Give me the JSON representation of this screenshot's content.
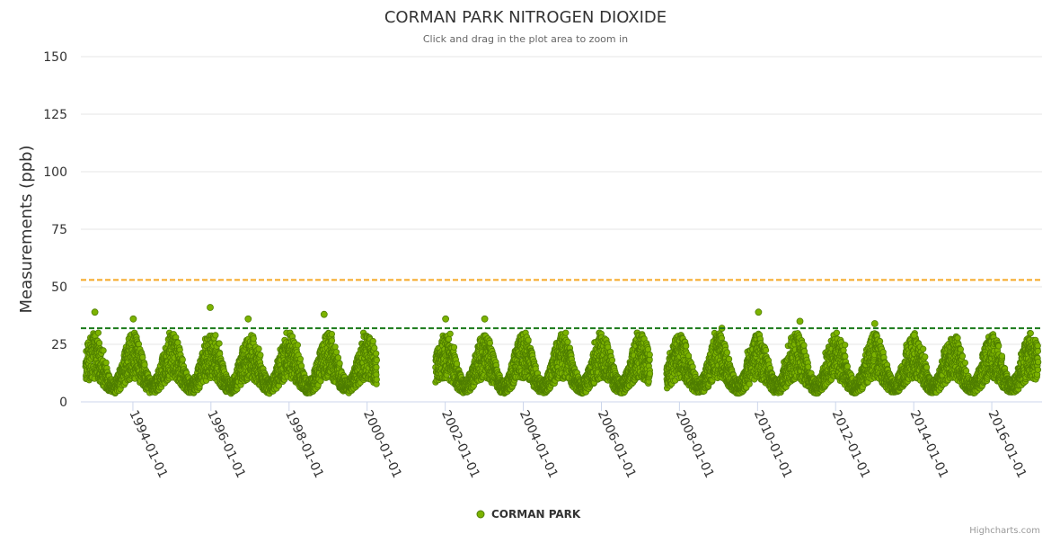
{
  "chart_data": {
    "type": "scatter",
    "title": "CORMAN PARK NITROGEN DIOXIDE",
    "subtitle": "Click and drag in the plot area to zoom in",
    "ylabel": "Measurements (ppb)",
    "xlabel": "",
    "ylim": [
      0,
      150
    ],
    "yticks": [
      0,
      25,
      50,
      75,
      100,
      125,
      150
    ],
    "xlim": [
      "1992-09-01",
      "2017-04-15"
    ],
    "xticks": [
      "1994-01-01",
      "1996-01-01",
      "1998-01-01",
      "2000-01-01",
      "2002-01-01",
      "2004-01-01",
      "2006-01-01",
      "2008-01-01",
      "2010-01-01",
      "2012-01-01",
      "2014-01-01",
      "2016-01-01"
    ],
    "thresholds": [
      {
        "name": "upper-threshold",
        "value": 53,
        "color": "#f5a623",
        "style": "dashed"
      },
      {
        "name": "lower-threshold",
        "value": 32,
        "color": "#1a7a1a",
        "style": "dashed"
      }
    ],
    "data_gaps": [
      [
        "2000-04-01",
        "2001-10-01"
      ],
      [
        "2007-04-01",
        "2007-09-01"
      ]
    ],
    "series": [
      {
        "name": "CORMAN PARK",
        "color": "#7cb300",
        "border_color": "#4e7d00",
        "marker": "circle",
        "seasonal_profile": {
          "description": "Daily measurements; winter peaks ~25-40 ppb, summer lows ~3-10 ppb",
          "peak_events": [
            {
              "date": "1993-01-10",
              "value": 39
            },
            {
              "date": "1994-01-05",
              "value": 36
            },
            {
              "date": "1995-12-25",
              "value": 41
            },
            {
              "date": "1996-12-15",
              "value": 36
            },
            {
              "date": "1998-11-25",
              "value": 38
            },
            {
              "date": "2002-01-05",
              "value": 36
            },
            {
              "date": "2003-01-05",
              "value": 36
            },
            {
              "date": "2009-02-01",
              "value": 32
            },
            {
              "date": "2010-01-10",
              "value": 39
            },
            {
              "date": "2011-02-01",
              "value": 35
            },
            {
              "date": "2013-01-01",
              "value": 34
            },
            {
              "date": "2014-01-05",
              "value": 29
            }
          ]
        }
      }
    ]
  },
  "legend": {
    "label": "CORMAN PARK"
  },
  "credits": {
    "label": "Highcharts.com"
  }
}
